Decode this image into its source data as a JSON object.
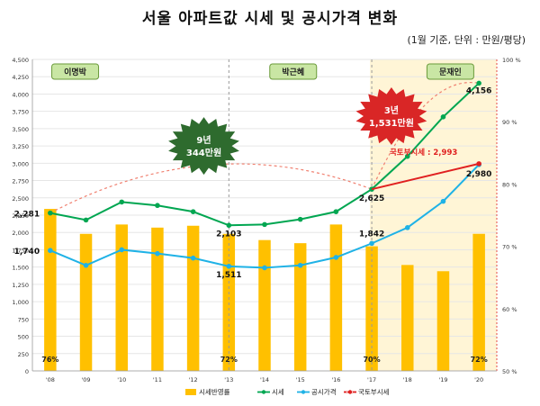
{
  "title": "서울 아파트값 시세 및 공시가격 변화",
  "unit_note": "(1월 기준, 단위 : 만원/평당)",
  "colors": {
    "bar": "#FFC000",
    "market": "#00A651",
    "official": "#1FB2E6",
    "ministry": "#E02020",
    "dotted": "#F08070",
    "band": "#FFF5D6",
    "header_box": "#C9E6A4",
    "header_border": "#6A9A3A",
    "badge_green": "#2E6B2E",
    "badge_red": "#D92626"
  },
  "chart_data": {
    "type": "bar+line",
    "categories": [
      "'08",
      "'09",
      "'10",
      "'11",
      "'12",
      "'13",
      "'14",
      "'15",
      "'16",
      "'17",
      "'18",
      "'19",
      "'20"
    ],
    "ylim_left": [
      0,
      4500
    ],
    "yticks_left": [
      "0",
      "250",
      "500",
      "750",
      "1,000",
      "1,250",
      "1,500",
      "1,750",
      "2,000",
      "2,250",
      "2,500",
      "2,750",
      "3,000",
      "3,250",
      "3,500",
      "3,750",
      "4,000",
      "4,250",
      "4,500"
    ],
    "ylim_right": [
      50,
      100
    ],
    "yticks_right": [
      "50 %",
      "60 %",
      "70 %",
      "80 %",
      "90 %",
      "100 %"
    ],
    "series": [
      {
        "name": "시세반영률",
        "kind": "bar",
        "axis": "right",
        "values": [
          76,
          72,
          73.5,
          73,
          73.3,
          72,
          71,
          70.5,
          73.5,
          70,
          67,
          66,
          72
        ]
      },
      {
        "name": "시세",
        "kind": "line",
        "axis": "left",
        "values": [
          2281,
          2180,
          2440,
          2390,
          2300,
          2103,
          2115,
          2190,
          2300,
          2625,
          3100,
          3670,
          4156
        ]
      },
      {
        "name": "공시가격",
        "kind": "line",
        "axis": "left",
        "values": [
          1740,
          1525,
          1750,
          1695,
          1630,
          1511,
          1490,
          1525,
          1640,
          1842,
          2070,
          2450,
          2980
        ]
      },
      {
        "name": "국토부시세",
        "kind": "line",
        "axis": "left",
        "x": [
          "'17",
          "'20"
        ],
        "values": [
          2625,
          2993
        ]
      }
    ],
    "data_labels": {
      "market": [
        {
          "x": "'08",
          "text": "2,281"
        },
        {
          "x": "'13",
          "text": "2,103"
        },
        {
          "x": "'17",
          "text": "2,625"
        },
        {
          "x": "'20",
          "text": "4,156"
        }
      ],
      "official": [
        {
          "x": "'08",
          "text": "1,740"
        },
        {
          "x": "'13",
          "text": "1,511"
        },
        {
          "x": "'17",
          "text": "1,842"
        },
        {
          "x": "'20",
          "text": "2,980"
        }
      ],
      "ratio": [
        {
          "x": "'08",
          "text": "76%"
        },
        {
          "x": "'13",
          "text": "72%"
        },
        {
          "x": "'17",
          "text": "70%"
        },
        {
          "x": "'20",
          "text": "72%"
        }
      ]
    },
    "ministry_label": "국토부시세 : 2,993",
    "eras": [
      {
        "label": "이명박",
        "center": "'08"
      },
      {
        "label": "박근혜",
        "center": "'15"
      },
      {
        "label": "문재인",
        "center": "'19"
      }
    ],
    "badges": [
      {
        "line1": "9년",
        "line2": "344만원"
      },
      {
        "line1": "3년",
        "line2": "1,531만원"
      }
    ],
    "legend": [
      "시세반영률",
      "시세",
      "공시가격",
      "국토부시세"
    ],
    "legend_position": "bottom"
  }
}
